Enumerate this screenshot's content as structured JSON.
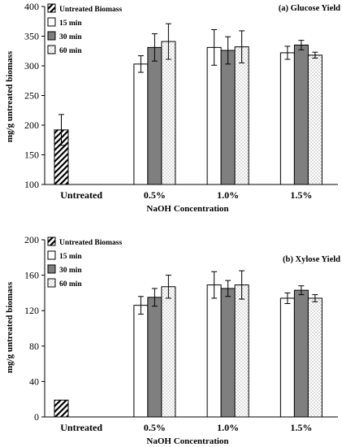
{
  "chart_data": [
    {
      "type": "bar",
      "title": "(a) Glucose Yield",
      "xlabel": "NaOH Concentration",
      "ylabel": "mg/g untreated biomass",
      "ylim": [
        100,
        400
      ],
      "yticks": [
        "100",
        "150",
        "200",
        "250",
        "300",
        "350",
        "400"
      ],
      "categories": [
        "Untreated",
        "0.5%",
        "1.0%",
        "1.5%"
      ],
      "legend_position": "top-left",
      "grid": false,
      "series": [
        {
          "name": "Untreated Biomass",
          "pattern": "diagonal-hatch",
          "values": [
            192,
            null,
            null,
            null
          ],
          "errors": [
            26,
            null,
            null,
            null
          ]
        },
        {
          "name": "15 min",
          "pattern": "white",
          "values": [
            null,
            303,
            331,
            322
          ],
          "errors": [
            null,
            14,
            30,
            11
          ]
        },
        {
          "name": "30 min",
          "pattern": "gray",
          "values": [
            null,
            331,
            326,
            335
          ],
          "errors": [
            null,
            23,
            23,
            8
          ]
        },
        {
          "name": "60 min",
          "pattern": "dotted",
          "values": [
            null,
            341,
            332,
            318
          ],
          "errors": [
            null,
            30,
            27,
            5
          ]
        }
      ]
    },
    {
      "type": "bar",
      "title": "(b) Xylose Yield",
      "xlabel": "NaOH Concentration",
      "ylabel": "mg/g untreated biomass",
      "ylim": [
        0,
        200
      ],
      "yticks": [
        "0",
        "40",
        "80",
        "120",
        "160",
        "200"
      ],
      "categories": [
        "Untreated",
        "0.5%",
        "1.0%",
        "1.5%"
      ],
      "legend_position": "top-left",
      "grid": false,
      "series": [
        {
          "name": "Untreated Biomass",
          "pattern": "diagonal-hatch",
          "values": [
            19,
            null,
            null,
            null
          ],
          "errors": [
            0,
            null,
            null,
            null
          ]
        },
        {
          "name": "15 min",
          "pattern": "white",
          "values": [
            null,
            126,
            149,
            134
          ],
          "errors": [
            null,
            10,
            15,
            6
          ]
        },
        {
          "name": "30 min",
          "pattern": "gray",
          "values": [
            null,
            135,
            145,
            143
          ],
          "errors": [
            null,
            10,
            9,
            5
          ]
        },
        {
          "name": "60 min",
          "pattern": "dotted",
          "values": [
            null,
            147,
            149,
            134
          ],
          "errors": [
            null,
            13,
            16,
            4
          ]
        }
      ]
    }
  ]
}
